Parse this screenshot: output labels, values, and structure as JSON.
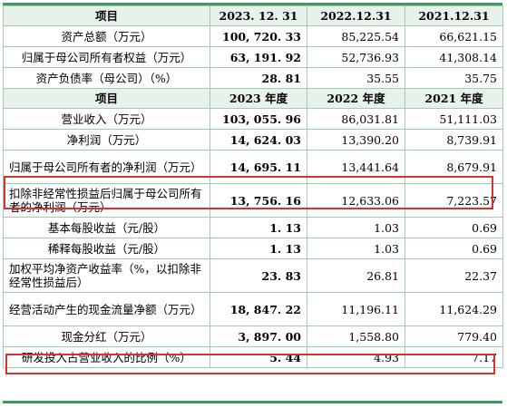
{
  "table": {
    "header1": [
      "项目",
      "2023. 12. 31",
      "2022.12.31",
      "2021.12.31"
    ],
    "rows1": [
      {
        "label": "资产总额（万元）",
        "v2023": "100, 720. 33",
        "v2022": "85,225.54",
        "v2021": "66,621.15"
      },
      {
        "label": "归属于母公司所有者权益（万元）",
        "v2023": "63, 191. 92",
        "v2022": "52,736.93",
        "v2021": "41,308.14"
      },
      {
        "label": "资产负债率（母公司）（%）",
        "v2023": "28. 81",
        "v2022": "35.55",
        "v2021": "35.75"
      }
    ],
    "header2": [
      "项目",
      "2023 年度",
      "2022 年度",
      "2021 年度"
    ],
    "rows2": [
      {
        "label": "营业收入（万元）",
        "v2023": "103, 055. 96",
        "v2022": "86,031.81",
        "v2021": "51,111.03"
      },
      {
        "label": "净利润（万元）",
        "v2023": "14, 624. 03",
        "v2022": "13,390.20",
        "v2021": "8,739.91"
      },
      {
        "label": "归属于母公司所有者的净利润（万元）",
        "v2023": "14, 695. 11",
        "v2022": "13,441.64",
        "v2021": "8,679.91"
      },
      {
        "label": "扣除非经常性损益后归属于母公司所有者的净利润（万元）",
        "v2023": "13, 756. 16",
        "v2022": "12,633.06",
        "v2021": "7,223.57"
      },
      {
        "label": "基本每股收益（元/股）",
        "v2023": "1. 13",
        "v2022": "1.03",
        "v2021": "0.69"
      },
      {
        "label": "稀释每股收益（元/股）",
        "v2023": "1. 13",
        "v2022": "1.03",
        "v2021": "0.69"
      },
      {
        "label": "加权平均净资产收益率（%，以扣除非经常性损益后）",
        "v2023": "23. 83",
        "v2022": "26.81",
        "v2021": "22.37"
      },
      {
        "label": "经营活动产生的现金流量净额（万元）",
        "v2023": "18, 847. 22",
        "v2022": "11,196.11",
        "v2021": "11,624.29"
      },
      {
        "label": "现金分红（万元）",
        "v2023": "3, 897. 00",
        "v2022": "1,558.80",
        "v2021": "779.40"
      },
      {
        "label": "研发投入占营业收入的比例（%）",
        "v2023": "5. 44",
        "v2022": "4.93",
        "v2021": "7.17"
      }
    ]
  },
  "colors": {
    "border": "#9fcdb0",
    "header_bg": "#e9f1eb",
    "frame": "#3e9a5e",
    "highlight": "#d9312b"
  }
}
